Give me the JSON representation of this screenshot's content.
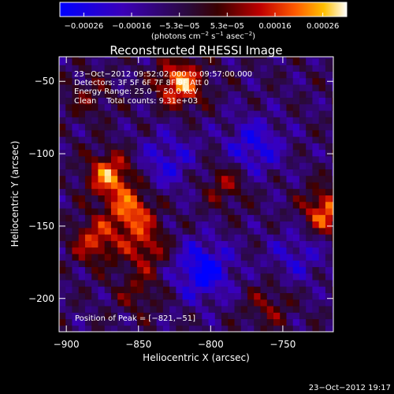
{
  "chart_data": {
    "type": "heatmap",
    "title": "Reconstructed RHESSI Image",
    "xlabel": "Heliocentric X (arcsec)",
    "ylabel": "Heliocentric Y (arcsec)",
    "xlim": [
      -905,
      -715
    ],
    "ylim": [
      -223,
      -33
    ],
    "xticks": [
      -900,
      -850,
      -800,
      -750
    ],
    "yticks": [
      -50,
      -100,
      -150,
      -200
    ],
    "xtick_labels": [
      "−900",
      "−850",
      "−800",
      "−750"
    ],
    "ytick_labels": [
      "−50",
      "−100",
      "−150",
      "−200"
    ],
    "colorbar": {
      "range": [
        -0.00026,
        0.00026
      ],
      "tick_labels": [
        "−0.00026",
        "−0.00016",
        "−5.3e−05",
        "5.3e−05",
        "0.00016",
        "0.00026"
      ],
      "units_prefix": "(photons cm",
      "units_exp1": "−2",
      "units_mid": " s",
      "units_exp2": "−1",
      "units_mid2": " asec",
      "units_exp3": "−2",
      "units_suffix": ")"
    },
    "annotations": [
      "23−Oct−2012 09:52:02.000 to 09:57:00.000",
      "Detectors: 3F 5F 6F 7F 8F 9F Att 0",
      "Energy Range: 25.0 − 50.0 keV",
      "Clean    Total counts: 9.31e+03"
    ],
    "peak_label": "Position of Peak = [−821,−51]",
    "peak": [
      -821,
      -51
    ],
    "hotspots": [
      {
        "x": -821,
        "y": -51,
        "value": 0.00026
      },
      {
        "x": -870,
        "y": -115,
        "value": 0.00024
      },
      {
        "x": -855,
        "y": -140,
        "value": 0.00022
      },
      {
        "x": -720,
        "y": -140,
        "value": 0.00023
      },
      {
        "x": -880,
        "y": -160,
        "value": 0.00018
      },
      {
        "x": -845,
        "y": -165,
        "value": 0.00015
      },
      {
        "x": -790,
        "y": -120,
        "value": 0.00012
      },
      {
        "x": -760,
        "y": -205,
        "value": 0.0001
      },
      {
        "x": -850,
        "y": -195,
        "value": 9e-05
      },
      {
        "x": -885,
        "y": -60,
        "value": 8e-05
      }
    ],
    "coldspots": [
      {
        "x": -805,
        "y": -180,
        "value": -0.0002
      },
      {
        "x": -770,
        "y": -95,
        "value": -0.00015
      },
      {
        "x": -830,
        "y": -105,
        "value": -0.00012
      },
      {
        "x": -740,
        "y": -170,
        "value": -0.0001
      }
    ]
  },
  "footer_timestamp": "23−Oct−2012 19:17"
}
